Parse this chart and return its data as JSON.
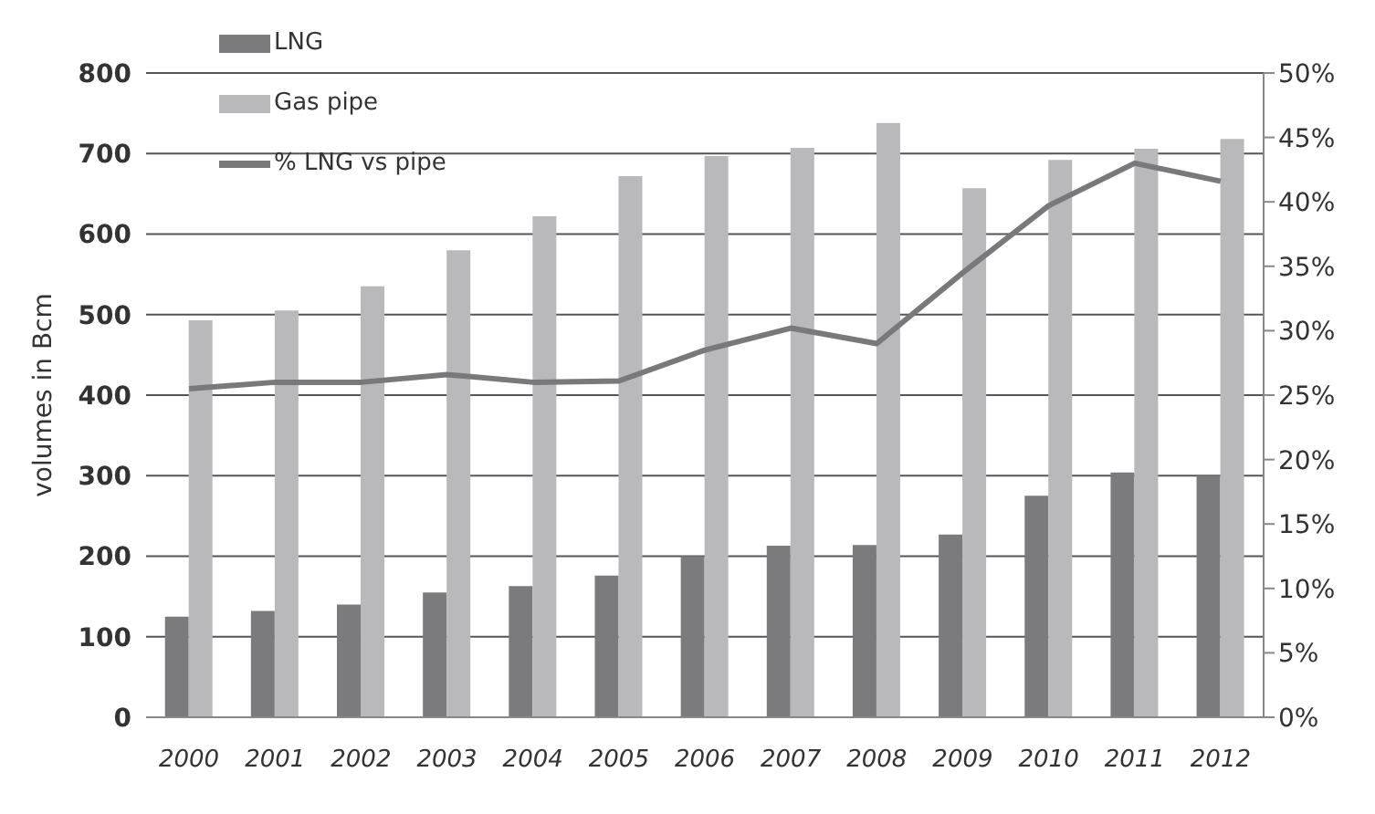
{
  "chart_data": {
    "type": "bar",
    "ylabel": "volumes in Bcm",
    "categories": [
      "2000",
      "2001",
      "2002",
      "2003",
      "2004",
      "2005",
      "2006",
      "2007",
      "2008",
      "2009",
      "2010",
      "2011",
      "2012"
    ],
    "series": [
      {
        "name": "LNG",
        "color": "#7b7b7d",
        "values": [
          125,
          132,
          140,
          155,
          163,
          176,
          200,
          213,
          214,
          227,
          275,
          304,
          300
        ]
      },
      {
        "name": "Gas pipe",
        "color": "#b9b9bb",
        "values": [
          493,
          505,
          535,
          580,
          622,
          672,
          697,
          707,
          738,
          657,
          692,
          706,
          718
        ]
      },
      {
        "name": "% LNG vs pipe",
        "type": "line",
        "axis": "y2",
        "color": "#79797b",
        "values": [
          25.5,
          26,
          26,
          26.6,
          26,
          26.1,
          28.5,
          30.2,
          29,
          34.5,
          39.7,
          43,
          41.6
        ]
      }
    ],
    "ylim": [
      0,
      800
    ],
    "yticks": [
      0,
      100,
      200,
      300,
      400,
      500,
      600,
      700,
      800
    ],
    "y2lim": [
      0,
      50
    ],
    "y2ticks": [
      {
        "value": 0,
        "label": "0%"
      },
      {
        "value": 5,
        "label": "5%"
      },
      {
        "value": 10,
        "label": "10%"
      },
      {
        "value": 15,
        "label": "15%"
      },
      {
        "value": 20,
        "label": "20%"
      },
      {
        "value": 25,
        "label": "25%"
      },
      {
        "value": 30,
        "label": "30%"
      },
      {
        "value": 35,
        "label": "35%"
      },
      {
        "value": 40,
        "label": "40%"
      },
      {
        "value": 45,
        "label": "45%"
      },
      {
        "value": 50,
        "label": "50%"
      }
    ],
    "grid": "y",
    "legend": "top left",
    "marker": "none"
  }
}
